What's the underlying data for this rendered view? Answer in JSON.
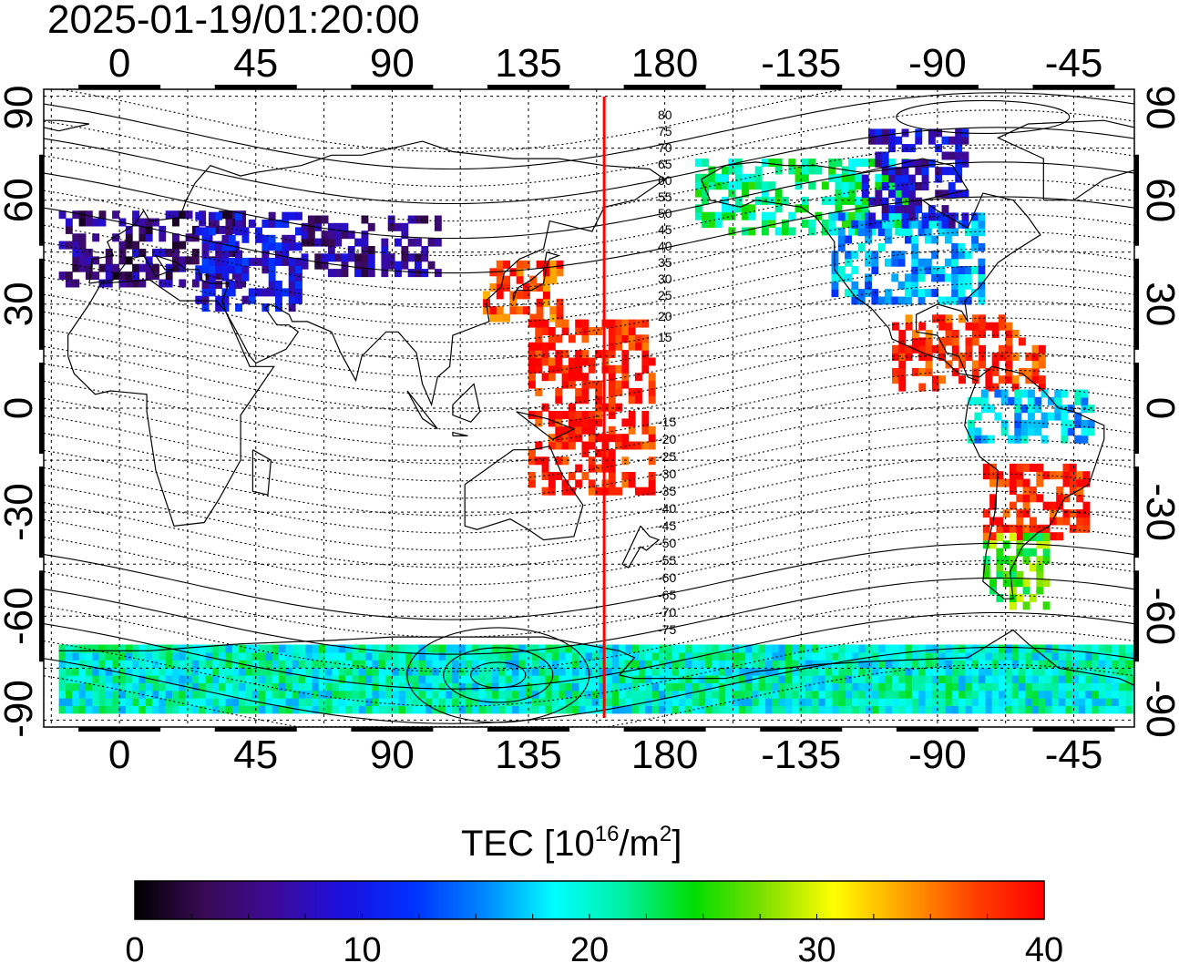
{
  "timestamp": "2025-01-19/01:20:00",
  "map": {
    "x_axis_ticks": [
      "0",
      "45",
      "90",
      "135",
      "180",
      "-135",
      "-90",
      "-45"
    ],
    "y_axis_ticks_left": [
      "90",
      "60",
      "30",
      "0",
      "-30",
      "-60",
      "-90"
    ],
    "y_axis_ticks_right": [
      "90",
      "60",
      "30",
      "0",
      "-30",
      "-60",
      "-90"
    ],
    "x_tick_values": [
      0,
      45,
      90,
      135,
      180,
      225,
      270,
      315
    ],
    "y_tick_values": [
      90,
      60,
      30,
      0,
      -30,
      -60,
      -90
    ],
    "lon_range": [
      -25,
      335
    ],
    "lat_range": [
      -92,
      92
    ],
    "terminator_longitude": 160,
    "terminator_color": "#ff0000",
    "grid": true,
    "contour_labels": [
      "80",
      "75",
      "70",
      "65",
      "60",
      "55",
      "50",
      "45",
      "40",
      "35",
      "30",
      "25",
      "20",
      "15",
      "-15",
      "-20",
      "-25",
      "-30",
      "-35",
      "-40",
      "-45",
      "-50",
      "-55",
      "-60",
      "-65",
      "-70",
      "-75"
    ]
  },
  "colorbar": {
    "title_main": "TEC  [10",
    "title_exp1": "16",
    "title_mid": "/m",
    "title_exp2": "2",
    "title_end": "]",
    "tick_labels": [
      "0",
      "10",
      "20",
      "30",
      "40"
    ],
    "tick_values": [
      0,
      10,
      20,
      30,
      40
    ],
    "range": [
      0,
      40
    ],
    "colormap": [
      "#000000",
      "#3a0a55",
      "#3d0a99",
      "#1a10e0",
      "#0033ff",
      "#0088ff",
      "#00ffff",
      "#00f0a0",
      "#00dd00",
      "#7fe000",
      "#ffff00",
      "#ffa000",
      "#ff4000",
      "#ff0000"
    ]
  },
  "chart_data": {
    "type": "heatmap",
    "title": "2025-01-19/01:20:00",
    "value_label": "TEC  [10^16/m^2]",
    "xlim": [
      -25,
      335
    ],
    "ylim": [
      -92,
      92
    ],
    "zlim": [
      0,
      40
    ],
    "regions": [
      {
        "lon": [
          -20,
          40
        ],
        "lat": [
          35,
          55
        ],
        "tec": 5
      },
      {
        "lon": [
          25,
          60
        ],
        "lat": [
          28,
          55
        ],
        "tec": 9
      },
      {
        "lon": [
          60,
          105
        ],
        "lat": [
          38,
          55
        ],
        "tec": 6
      },
      {
        "lon": [
          120,
          145
        ],
        "lat": [
          25,
          42
        ],
        "tec": 37
      },
      {
        "lon": [
          190,
          260
        ],
        "lat": [
          50,
          70
        ],
        "tec": 22
      },
      {
        "lon": [
          235,
          285
        ],
        "lat": [
          30,
          55
        ],
        "tec": 16
      },
      {
        "lon": [
          245,
          280
        ],
        "lat": [
          52,
          80
        ],
        "tec": 8
      },
      {
        "lon": [
          255,
          305
        ],
        "lat": [
          5,
          25
        ],
        "tec": 38
      },
      {
        "lon": [
          280,
          320
        ],
        "lat": [
          -10,
          5
        ],
        "tec": 17
      },
      {
        "lon": [
          285,
          320
        ],
        "lat": [
          -38,
          -18
        ],
        "tec": 39
      },
      {
        "lon": [
          285,
          305
        ],
        "lat": [
          -58,
          -38
        ],
        "tec": 26
      },
      {
        "lon": [
          135,
          175
        ],
        "lat": [
          -25,
          25
        ],
        "tec": 39
      },
      {
        "lon": [
          -20,
          335
        ],
        "lat": [
          -88,
          -70
        ],
        "tec": 20
      }
    ]
  }
}
